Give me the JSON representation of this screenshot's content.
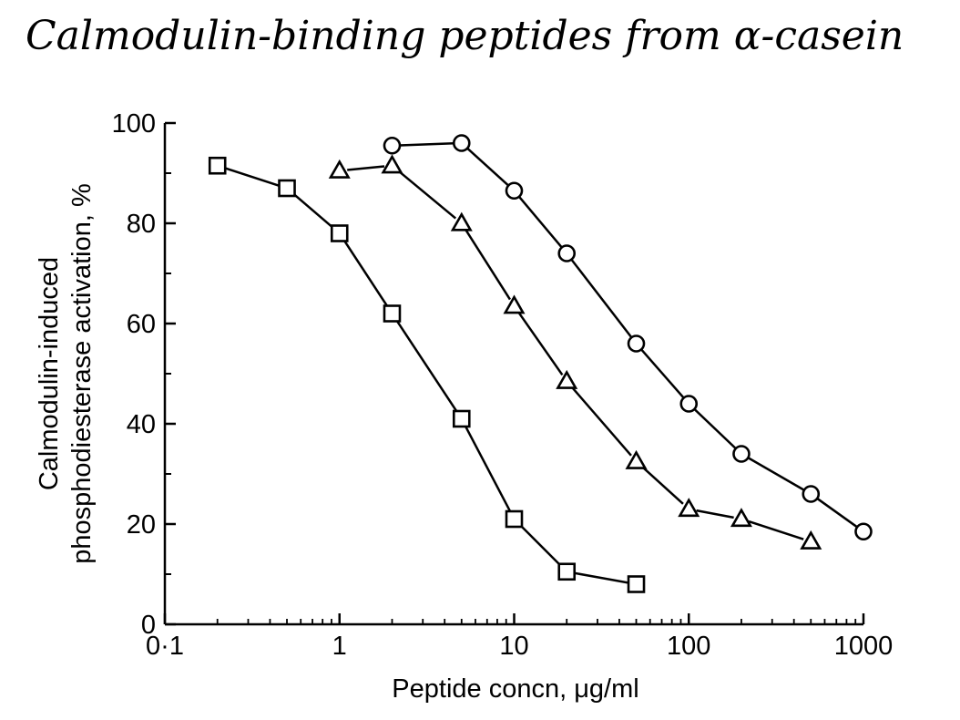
{
  "title": "Calmodulin-binding peptides from α-casein",
  "chart_data": {
    "type": "line",
    "xscale": "log",
    "xlim": [
      0.1,
      1000
    ],
    "ylim": [
      0,
      100
    ],
    "xlabel": "Peptide concn, μg/ml",
    "ylabel_line1": "Calmodulin-induced",
    "ylabel_line2": "phosphodiesterase activation, %",
    "x_ticks": [
      {
        "value": 0.1,
        "label": "0·1"
      },
      {
        "value": 1,
        "label": "1"
      },
      {
        "value": 10,
        "label": "10"
      },
      {
        "value": 100,
        "label": "100"
      },
      {
        "value": 1000,
        "label": "1000"
      }
    ],
    "y_ticks": [
      {
        "value": 0,
        "label": "0"
      },
      {
        "value": 20,
        "label": "20"
      },
      {
        "value": 40,
        "label": "40"
      },
      {
        "value": 60,
        "label": "60"
      },
      {
        "value": 80,
        "label": "80"
      },
      {
        "value": 100,
        "label": "100"
      }
    ],
    "grid": false,
    "series": [
      {
        "marker": "square",
        "points": [
          [
            0.2,
            91.5
          ],
          [
            0.5,
            87
          ],
          [
            1,
            78
          ],
          [
            2,
            62
          ],
          [
            5,
            41
          ],
          [
            10,
            21
          ],
          [
            20,
            10.5
          ],
          [
            50,
            8
          ]
        ]
      },
      {
        "marker": "triangle",
        "points": [
          [
            1,
            90.5
          ],
          [
            2,
            91.5
          ],
          [
            5,
            80
          ],
          [
            10,
            63.5
          ],
          [
            20,
            48.5
          ],
          [
            50,
            32.5
          ],
          [
            100,
            23
          ],
          [
            200,
            21
          ],
          [
            500,
            16.5
          ]
        ]
      },
      {
        "marker": "circle",
        "points": [
          [
            2,
            95.5
          ],
          [
            5,
            96
          ],
          [
            10,
            86.5
          ],
          [
            20,
            74
          ],
          [
            50,
            56
          ],
          [
            100,
            44
          ],
          [
            200,
            34
          ],
          [
            500,
            26
          ],
          [
            1000,
            18.5
          ]
        ]
      }
    ]
  }
}
